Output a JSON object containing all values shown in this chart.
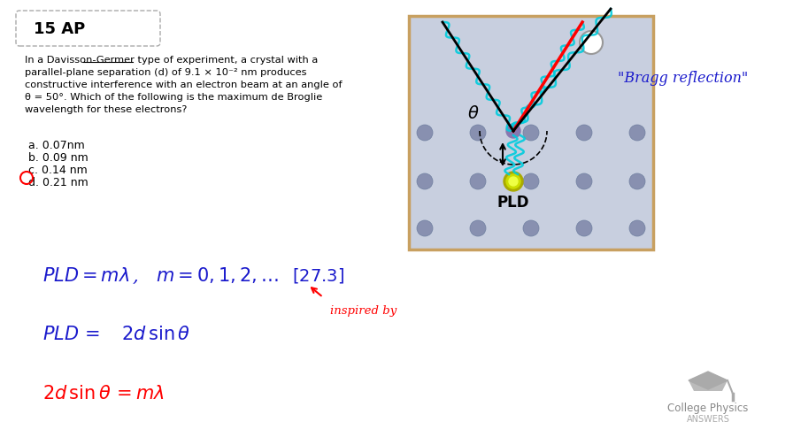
{
  "bg_color": "#ffffff",
  "title_box_text": "15 AP",
  "problem_text_lines": [
    "In a Davisson-Germer type of experiment, a crystal with a",
    "parallel-plane separation (d) of 9.1 × 10⁻² nm produces",
    "constructive interference with an electron beam at an angle of",
    "θ = 50°. Which of the following is the maximum de Broglie",
    "wavelength for these electrons?"
  ],
  "choices": [
    "a. 0.07nm",
    "b. 0.09 nm",
    "c. 0.14 nm",
    "d. 0.21 nm"
  ],
  "answer_index": 2,
  "bragg_text": "\"Bragg reflection\"",
  "inspired_text": "inspired by",
  "crystal_color": "#c8cfdf",
  "crystal_border": "#c8a060",
  "logo_text1": "College Physics",
  "logo_text2": "ANSWERS"
}
